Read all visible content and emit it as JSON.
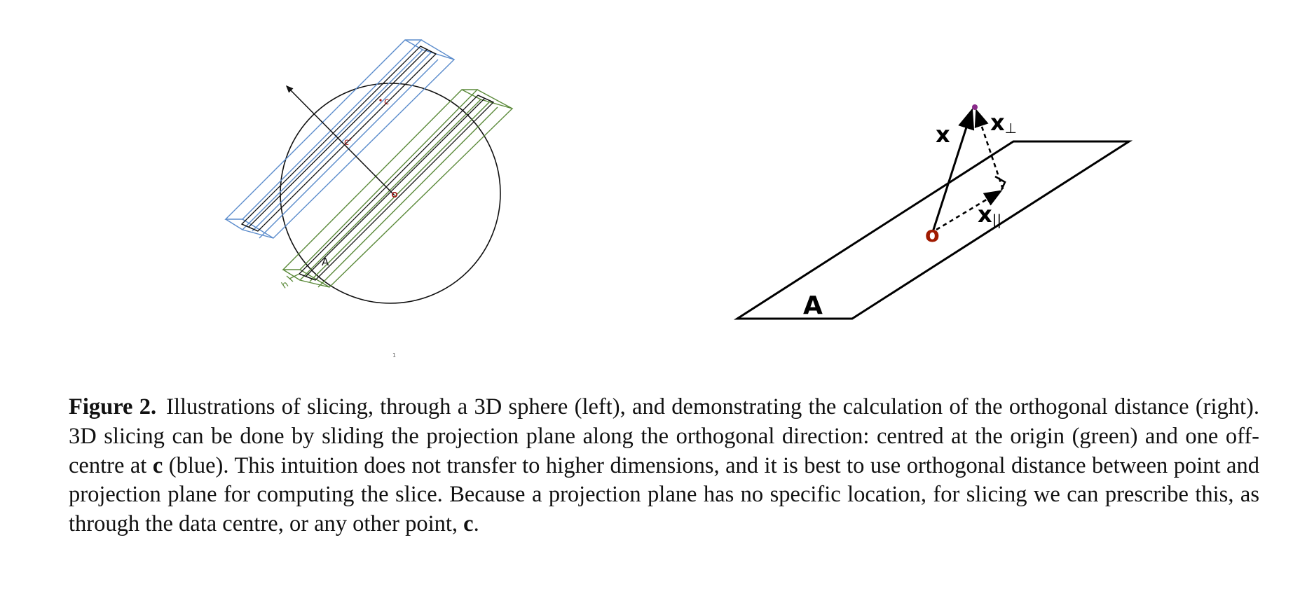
{
  "left_figure": {
    "label_c": "c",
    "label_c_prime": "c'",
    "label_A": "A",
    "label_h": "h",
    "page_mark": "1",
    "colors": {
      "blue_slab": "#5b8ccc",
      "green_slab": "#5b8a3a",
      "points": "#a01010",
      "outline": "#111111"
    }
  },
  "right_figure": {
    "label_x": "x",
    "label_x_perp": "x",
    "perp_symbol": "⊥",
    "label_x_par": "x",
    "par_symbol": "||",
    "label_origin": "o",
    "label_A": "A",
    "colors": {
      "origin": "#a01a00",
      "tip": "#8a2a8a",
      "lines": "#000000"
    }
  },
  "caption": {
    "label": "Figure 2.",
    "part1": "Illustrations of slicing, through a 3D sphere (left), and demonstrating the calculation of the orthogonal distance (right). 3D slicing can be done by sliding the projection plane along the orthogonal direction: centred at the origin (green) and one off-centre at ",
    "bold1": "c",
    "part2": " (blue). This intuition does not transfer to higher dimensions, and it is best to use orthogonal distance between point and projection plane for computing the slice. Because a projection plane has no specific location, for slicing we can prescribe this, as through the data centre, or any other point, ",
    "bold2": "c",
    "part3": "."
  }
}
